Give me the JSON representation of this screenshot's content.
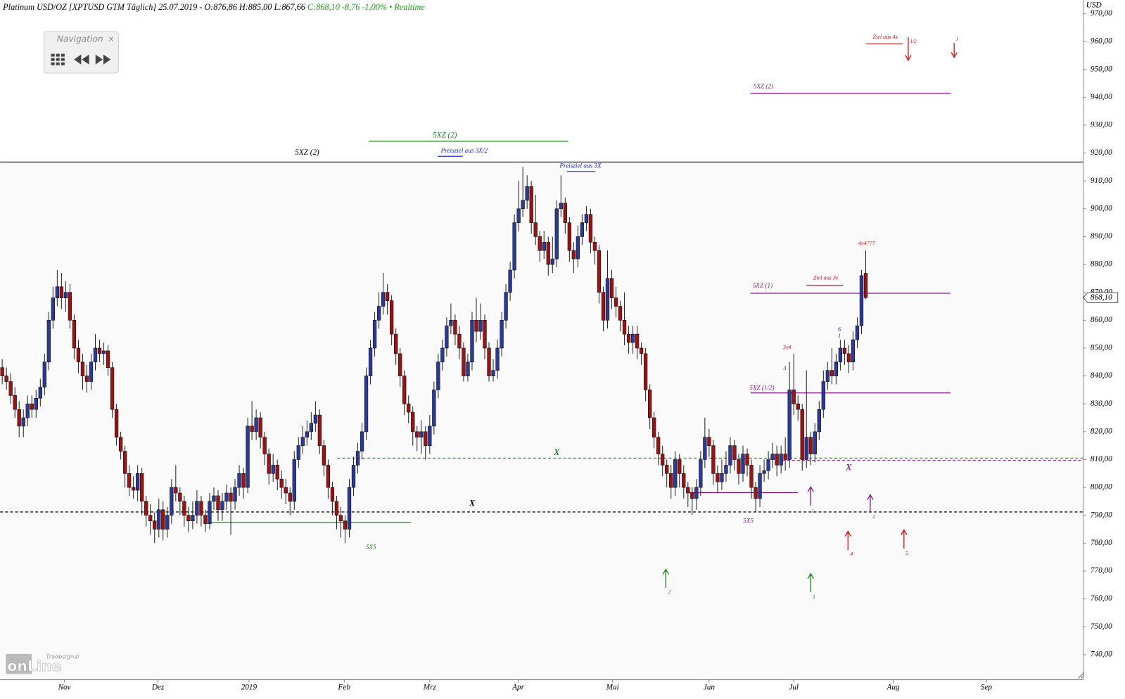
{
  "chart_data": {
    "type": "candlestick",
    "title": "Platinum USD/OZ [XPTUSD GTM Täglich] 25.07.2019 - O:876,86 H:885,00 L:867,66",
    "subtitle": "C:868,10 -8,76 -1,00% • Realtime",
    "y_axis_label": "USD",
    "navigation": "Navigation",
    "logo": [
      "Tradesignal",
      "onLine"
    ],
    "up_color": "#2a3a9a",
    "down_color": "#a01212",
    "ylim": [
      731,
      974.9
    ],
    "yticks": [
      {
        "value": 740,
        "label": "740,00"
      },
      {
        "value": 750,
        "label": "750,00"
      },
      {
        "value": 760,
        "label": "760,00"
      },
      {
        "value": 770,
        "label": "770,00"
      },
      {
        "value": 780,
        "label": "780,00"
      },
      {
        "value": 790,
        "label": "790,00"
      },
      {
        "value": 800,
        "label": "800,00"
      },
      {
        "value": 810,
        "label": "810,00"
      },
      {
        "value": 820,
        "label": "820,00"
      },
      {
        "value": 830,
        "label": "830,00"
      },
      {
        "value": 840,
        "label": "840,00"
      },
      {
        "value": 850,
        "label": "850,00"
      },
      {
        "value": 860,
        "label": "860,00"
      },
      {
        "value": 870,
        "label": "870,00"
      },
      {
        "value": 880,
        "label": "880,00"
      },
      {
        "value": 890,
        "label": "890,00"
      },
      {
        "value": 900,
        "label": "900,00"
      },
      {
        "value": 910,
        "label": "910,00"
      },
      {
        "value": 920,
        "label": "920,00"
      },
      {
        "value": 930,
        "label": "930,00"
      },
      {
        "value": 940,
        "label": "940,00"
      },
      {
        "value": 950,
        "label": "950,00"
      },
      {
        "value": 960,
        "label": "960,00"
      },
      {
        "value": 970,
        "label": "970,00"
      }
    ],
    "last_price": {
      "value": 868.1,
      "label": "868,10"
    },
    "xlim": [
      -0.5,
      255.4
    ],
    "xticks": [
      {
        "value": 14.7,
        "label": "Nov"
      },
      {
        "value": 36.8,
        "label": "Dez"
      },
      {
        "value": 58.3,
        "label": "2019"
      },
      {
        "value": 80.8,
        "label": "Feb"
      },
      {
        "value": 101,
        "label": "Mrz"
      },
      {
        "value": 121.9,
        "label": "Apr"
      },
      {
        "value": 144.2,
        "label": "Mai"
      },
      {
        "value": 167,
        "label": "Jun"
      },
      {
        "value": 187,
        "label": "Jul"
      },
      {
        "value": 210.5,
        "label": "Aug"
      },
      {
        "value": 232.5,
        "label": "Sep"
      }
    ],
    "grid": true,
    "annotations": [
      "5XZ (2)",
      "5XZ (2)",
      "Preisziel aus 3X/2",
      "Preisziel aus 3X",
      "5XZ (2)",
      "Ziel aus 4x",
      "1/2",
      "1",
      "4x4???",
      "Ziel aus 3x",
      "5XZ (1)",
      "6",
      "1",
      "3",
      "3",
      "3x4",
      "5XZ (1/2)",
      "X",
      "X",
      "X",
      "5X5",
      "5X5",
      "1",
      "2",
      "4",
      "5",
      "2",
      "3"
    ],
    "candles": [
      [
        843,
        846,
        837,
        840
      ],
      [
        840,
        843,
        835,
        838
      ],
      [
        838,
        841,
        830,
        833
      ],
      [
        833,
        836,
        825,
        828
      ],
      [
        828,
        831,
        818,
        822
      ],
      [
        822,
        828,
        818,
        825
      ],
      [
        825,
        833,
        822,
        830
      ],
      [
        830,
        833,
        825,
        828
      ],
      [
        828,
        835,
        825,
        832
      ],
      [
        832,
        839,
        829,
        836
      ],
      [
        836,
        848,
        833,
        845
      ],
      [
        845,
        863,
        842,
        860
      ],
      [
        860,
        872,
        857,
        868
      ],
      [
        868,
        878,
        865,
        872
      ],
      [
        872,
        877,
        864,
        868
      ],
      [
        868,
        874,
        863,
        870
      ],
      [
        870,
        873,
        857,
        860
      ],
      [
        860,
        862,
        846,
        850
      ],
      [
        850,
        853,
        841,
        845
      ],
      [
        845,
        848,
        835,
        840
      ],
      [
        840,
        844,
        834,
        838
      ],
      [
        838,
        848,
        835,
        845
      ],
      [
        845,
        855,
        842,
        850
      ],
      [
        850,
        853,
        845,
        848
      ],
      [
        848,
        852,
        844,
        849
      ],
      [
        849,
        851,
        840,
        843
      ],
      [
        843,
        845,
        825,
        828
      ],
      [
        828,
        830,
        815,
        818
      ],
      [
        818,
        820,
        810,
        813
      ],
      [
        813,
        815,
        800,
        805
      ],
      [
        805,
        808,
        797,
        800
      ],
      [
        800,
        804,
        796,
        799
      ],
      [
        799,
        808,
        795,
        805
      ],
      [
        805,
        807,
        790,
        795
      ],
      [
        795,
        797,
        786,
        790
      ],
      [
        790,
        794,
        783,
        788
      ],
      [
        788,
        791,
        780,
        785
      ],
      [
        785,
        796,
        782,
        792
      ],
      [
        792,
        795,
        781,
        785
      ],
      [
        785,
        793,
        782,
        790
      ],
      [
        790,
        803,
        787,
        800
      ],
      [
        800,
        808,
        795,
        798
      ],
      [
        798,
        800,
        790,
        795
      ],
      [
        795,
        797,
        786,
        790
      ],
      [
        790,
        793,
        784,
        788
      ],
      [
        788,
        795,
        785,
        790
      ],
      [
        790,
        799,
        787,
        795
      ],
      [
        795,
        797,
        786,
        790
      ],
      [
        790,
        792,
        784,
        787
      ],
      [
        787,
        798,
        785,
        795
      ],
      [
        795,
        800,
        792,
        797
      ],
      [
        797,
        799,
        788,
        792
      ],
      [
        792,
        798,
        788,
        795
      ],
      [
        795,
        801,
        792,
        798
      ],
      [
        798,
        800,
        783,
        795
      ],
      [
        795,
        803,
        792,
        800
      ],
      [
        800,
        808,
        797,
        805
      ],
      [
        805,
        807,
        796,
        800
      ],
      [
        800,
        825,
        798,
        822
      ],
      [
        822,
        831,
        817,
        820
      ],
      [
        820,
        828,
        817,
        825
      ],
      [
        825,
        827,
        814,
        818
      ],
      [
        818,
        820,
        808,
        812
      ],
      [
        812,
        814,
        801,
        805
      ],
      [
        805,
        812,
        802,
        808
      ],
      [
        808,
        810,
        799,
        803
      ],
      [
        803,
        806,
        796,
        800
      ],
      [
        800,
        803,
        794,
        798
      ],
      [
        798,
        800,
        790,
        795
      ],
      [
        795,
        813,
        792,
        810
      ],
      [
        810,
        818,
        807,
        815
      ],
      [
        815,
        822,
        812,
        818
      ],
      [
        818,
        824,
        815,
        820
      ],
      [
        820,
        827,
        817,
        823
      ],
      [
        823,
        831,
        820,
        826
      ],
      [
        826,
        828,
        812,
        815
      ],
      [
        815,
        817,
        804,
        808
      ],
      [
        808,
        810,
        796,
        800
      ],
      [
        800,
        802,
        790,
        795
      ],
      [
        795,
        797,
        785,
        790
      ],
      [
        790,
        793,
        782,
        788
      ],
      [
        788,
        790,
        780,
        785
      ],
      [
        785,
        803,
        782,
        800
      ],
      [
        800,
        811,
        797,
        808
      ],
      [
        808,
        816,
        805,
        813
      ],
      [
        813,
        823,
        810,
        820
      ],
      [
        820,
        843,
        817,
        840
      ],
      [
        840,
        853,
        837,
        850
      ],
      [
        850,
        863,
        847,
        860
      ],
      [
        860,
        870,
        857,
        865
      ],
      [
        865,
        877,
        862,
        870
      ],
      [
        870,
        873,
        862,
        867
      ],
      [
        867,
        869,
        851,
        855
      ],
      [
        855,
        857,
        844,
        848
      ],
      [
        848,
        850,
        836,
        840
      ],
      [
        840,
        842,
        826,
        830
      ],
      [
        830,
        833,
        823,
        827
      ],
      [
        827,
        829,
        815,
        820
      ],
      [
        820,
        822,
        813,
        818
      ],
      [
        818,
        824,
        812,
        820
      ],
      [
        820,
        822,
        810,
        815
      ],
      [
        815,
        826,
        812,
        822
      ],
      [
        822,
        838,
        819,
        835
      ],
      [
        835,
        848,
        832,
        845
      ],
      [
        845,
        853,
        842,
        850
      ],
      [
        850,
        861,
        847,
        858
      ],
      [
        858,
        866,
        855,
        860
      ],
      [
        860,
        862,
        851,
        855
      ],
      [
        855,
        858,
        846,
        850
      ],
      [
        850,
        852,
        838,
        840
      ],
      [
        840,
        848,
        838,
        845
      ],
      [
        845,
        863,
        842,
        860
      ],
      [
        860,
        868,
        852,
        856
      ],
      [
        856,
        866,
        853,
        860
      ],
      [
        860,
        862,
        846,
        850
      ],
      [
        850,
        852,
        838,
        840
      ],
      [
        840,
        846,
        838,
        842
      ],
      [
        842,
        853,
        839,
        850
      ],
      [
        850,
        863,
        847,
        860
      ],
      [
        860,
        873,
        857,
        870
      ],
      [
        870,
        881,
        867,
        878
      ],
      [
        878,
        898,
        875,
        895
      ],
      [
        895,
        910,
        892,
        900
      ],
      [
        900,
        915,
        897,
        903
      ],
      [
        903,
        912,
        900,
        908
      ],
      [
        908,
        910,
        891,
        895
      ],
      [
        895,
        905,
        887,
        890
      ],
      [
        890,
        892,
        881,
        885
      ],
      [
        885,
        892,
        882,
        888
      ],
      [
        888,
        890,
        876,
        880
      ],
      [
        880,
        890,
        877,
        882
      ],
      [
        882,
        903,
        879,
        900
      ],
      [
        900,
        912,
        897,
        902
      ],
      [
        902,
        904,
        891,
        895
      ],
      [
        895,
        897,
        881,
        885
      ],
      [
        885,
        888,
        877,
        882
      ],
      [
        882,
        894,
        879,
        890
      ],
      [
        890,
        898,
        887,
        895
      ],
      [
        895,
        901,
        892,
        898
      ],
      [
        898,
        900,
        884,
        888
      ],
      [
        888,
        890,
        880,
        885
      ],
      [
        885,
        887,
        866,
        870
      ],
      [
        870,
        872,
        856,
        860
      ],
      [
        860,
        885,
        857,
        875
      ],
      [
        875,
        878,
        864,
        868
      ],
      [
        868,
        872,
        861,
        865
      ],
      [
        865,
        867,
        856,
        860
      ],
      [
        860,
        870,
        851,
        855
      ],
      [
        855,
        858,
        848,
        852
      ],
      [
        852,
        858,
        848,
        855
      ],
      [
        855,
        858,
        846,
        850
      ],
      [
        850,
        852,
        844,
        848
      ],
      [
        848,
        850,
        831,
        835
      ],
      [
        835,
        837,
        821,
        825
      ],
      [
        825,
        827,
        814,
        818
      ],
      [
        818,
        820,
        808,
        812
      ],
      [
        812,
        815,
        804,
        808
      ],
      [
        808,
        810,
        800,
        805
      ],
      [
        805,
        808,
        796,
        800
      ],
      [
        800,
        813,
        797,
        810
      ],
      [
        810,
        812,
        800,
        805
      ],
      [
        805,
        808,
        796,
        800
      ],
      [
        800,
        802,
        793,
        798
      ],
      [
        798,
        800,
        790,
        796
      ],
      [
        796,
        803,
        792,
        800
      ],
      [
        800,
        813,
        797,
        810
      ],
      [
        810,
        825,
        807,
        818
      ],
      [
        818,
        821,
        811,
        815
      ],
      [
        815,
        817,
        801,
        805
      ],
      [
        805,
        808,
        798,
        802
      ],
      [
        802,
        810,
        799,
        805
      ],
      [
        805,
        813,
        802,
        808
      ],
      [
        808,
        818,
        805,
        815
      ],
      [
        815,
        817,
        806,
        810
      ],
      [
        810,
        812,
        801,
        805
      ],
      [
        805,
        815,
        802,
        812
      ],
      [
        812,
        814,
        804,
        808
      ],
      [
        808,
        810,
        796,
        800
      ],
      [
        800,
        802,
        791,
        796
      ],
      [
        796,
        808,
        793,
        805
      ],
      [
        805,
        810,
        802,
        806
      ],
      [
        806,
        813,
        803,
        810
      ],
      [
        810,
        816,
        807,
        812
      ],
      [
        812,
        815,
        804,
        808
      ],
      [
        808,
        815,
        805,
        812
      ],
      [
        812,
        818,
        806,
        810
      ],
      [
        810,
        845,
        807,
        835
      ],
      [
        835,
        848,
        826,
        830
      ],
      [
        830,
        833,
        824,
        828
      ],
      [
        828,
        830,
        806,
        810
      ],
      [
        810,
        842,
        807,
        818
      ],
      [
        818,
        820,
        808,
        812
      ],
      [
        812,
        823,
        809,
        820
      ],
      [
        820,
        831,
        817,
        828
      ],
      [
        828,
        842,
        825,
        838
      ],
      [
        838,
        845,
        835,
        842
      ],
      [
        842,
        850,
        837,
        840
      ],
      [
        840,
        848,
        837,
        845
      ],
      [
        845,
        853,
        842,
        850
      ],
      [
        850,
        853,
        844,
        848
      ],
      [
        848,
        851,
        841,
        845
      ],
      [
        845,
        856,
        842,
        853
      ],
      [
        853,
        861,
        850,
        858
      ],
      [
        858,
        878,
        855,
        876
      ],
      [
        876.86,
        885,
        867.66,
        868.1
      ]
    ]
  }
}
